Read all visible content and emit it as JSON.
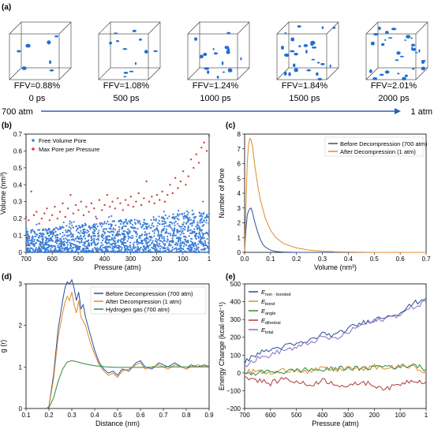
{
  "chart_data": [
    {
      "panel": "(a)",
      "type": "other",
      "snapshots": [
        {
          "ffv": "FFV=0.88%",
          "time": "0 ps",
          "pores": 7
        },
        {
          "ffv": "FFV=1.08%",
          "time": "500 ps",
          "pores": 12
        },
        {
          "ffv": "FFV=1.24%",
          "time": "1000 ps",
          "pores": 16
        },
        {
          "ffv": "FFV=1.84%",
          "time": "1500 ps",
          "pores": 26
        },
        {
          "ffv": "FFV=2.01%",
          "time": "2000 ps",
          "pores": 30
        }
      ],
      "arrow_start": "700 atm",
      "arrow_end": "1 atm",
      "colors": {
        "pore": "#1f6fd6",
        "box": "#333333",
        "arrow": "#2f5fb3"
      }
    },
    {
      "panel": "(b)",
      "type": "scatter",
      "xlabel": "Pressure (atm)",
      "ylabel": "Volume (nm³)",
      "xlim": [
        700,
        1
      ],
      "ylim": [
        0,
        0.7
      ],
      "xticks": [
        "700",
        "600",
        "500",
        "400",
        "300",
        "200",
        "100",
        "1"
      ],
      "yticks": [
        "0",
        "0.1",
        "0.2",
        "0.3",
        "0.4",
        "0.5",
        "0.6",
        "0.7"
      ],
      "legend": "top-left",
      "series": [
        {
          "name": "Free Volume Pore",
          "color": "#3b7dd8",
          "values": "dense band 0–0.15, rising to ~0.3 near 1 atm"
        },
        {
          "name": "Max Pore per Pressure",
          "color": "#d04040",
          "values": [
            [
              700,
              0.21
            ],
            [
              690,
              0.19
            ],
            [
              680,
              0.36
            ],
            [
              670,
              0.22
            ],
            [
              660,
              0.24
            ],
            [
              650,
              0.17
            ],
            [
              640,
              0.2
            ],
            [
              630,
              0.23
            ],
            [
              620,
              0.26
            ],
            [
              610,
              0.19
            ],
            [
              600,
              0.22
            ],
            [
              590,
              0.27
            ],
            [
              580,
              0.2
            ],
            [
              570,
              0.24
            ],
            [
              560,
              0.29
            ],
            [
              550,
              0.21
            ],
            [
              540,
              0.26
            ],
            [
              530,
              0.34
            ],
            [
              520,
              0.23
            ],
            [
              510,
              0.28
            ],
            [
              500,
              0.25
            ],
            [
              490,
              0.3
            ],
            [
              480,
              0.22
            ],
            [
              470,
              0.27
            ],
            [
              460,
              0.24
            ],
            [
              450,
              0.29
            ],
            [
              440,
              0.26
            ],
            [
              430,
              0.2
            ],
            [
              420,
              0.31
            ],
            [
              410,
              0.25
            ],
            [
              400,
              0.28
            ],
            [
              390,
              0.34
            ],
            [
              380,
              0.27
            ],
            [
              370,
              0.3
            ],
            [
              360,
              0.26
            ],
            [
              350,
              0.32
            ],
            [
              340,
              0.29
            ],
            [
              330,
              0.25
            ],
            [
              320,
              0.31
            ],
            [
              310,
              0.28
            ],
            [
              300,
              0.33
            ],
            [
              290,
              0.27
            ],
            [
              280,
              0.3
            ],
            [
              270,
              0.35
            ],
            [
              260,
              0.28
            ],
            [
              250,
              0.32
            ],
            [
              240,
              0.42
            ],
            [
              230,
              0.3
            ],
            [
              220,
              0.33
            ],
            [
              210,
              0.29
            ],
            [
              200,
              0.34
            ],
            [
              190,
              0.31
            ],
            [
              180,
              0.36
            ],
            [
              170,
              0.3
            ],
            [
              160,
              0.34
            ],
            [
              150,
              0.4
            ],
            [
              140,
              0.35
            ],
            [
              130,
              0.44
            ],
            [
              120,
              0.38
            ],
            [
              110,
              0.42
            ],
            [
              100,
              0.48
            ],
            [
              90,
              0.4
            ],
            [
              80,
              0.45
            ],
            [
              70,
              0.55
            ],
            [
              60,
              0.5
            ],
            [
              50,
              0.58
            ],
            [
              40,
              0.53
            ],
            [
              30,
              0.62
            ],
            [
              20,
              0.65
            ],
            [
              10,
              0.6
            ],
            [
              1,
              0.69
            ]
          ]
        }
      ]
    },
    {
      "panel": "(c)",
      "type": "line",
      "xlabel": "Volume (nm³)",
      "ylabel": "Number of Pore",
      "xlim": [
        0,
        0.7
      ],
      "ylim": [
        0,
        8
      ],
      "xticks": [
        "0.0",
        "0.1",
        "0.2",
        "0.3",
        "0.4",
        "0.5",
        "0.6",
        "0.7"
      ],
      "yticks": [
        "0",
        "1",
        "2",
        "3",
        "4",
        "5",
        "6",
        "7",
        "8"
      ],
      "legend": "top-right",
      "series": [
        {
          "name": "Before Decompression (700 atm)",
          "color": "#2b4f9a",
          "x": [
            0.0,
            0.005,
            0.01,
            0.015,
            0.02,
            0.025,
            0.03,
            0.04,
            0.05,
            0.06,
            0.07,
            0.08,
            0.1,
            0.12,
            0.15,
            0.2,
            0.3,
            0.5,
            0.7
          ],
          "y": [
            0.1,
            1.5,
            2.5,
            2.8,
            2.95,
            3.0,
            2.7,
            2.0,
            1.4,
            0.9,
            0.55,
            0.35,
            0.15,
            0.06,
            0.02,
            0.0,
            0.0,
            0.0,
            0.0
          ]
        },
        {
          "name": "After Decompression (1 atm)",
          "color": "#e08a2c",
          "x": [
            0.0,
            0.005,
            0.01,
            0.015,
            0.02,
            0.025,
            0.03,
            0.035,
            0.04,
            0.05,
            0.06,
            0.08,
            0.1,
            0.12,
            0.15,
            0.2,
            0.25,
            0.3,
            0.35,
            0.4,
            0.5,
            0.7
          ],
          "y": [
            0.1,
            3.0,
            6.0,
            7.3,
            7.7,
            7.6,
            7.2,
            6.5,
            5.8,
            4.6,
            3.6,
            2.3,
            1.5,
            1.0,
            0.6,
            0.3,
            0.15,
            0.08,
            0.04,
            0.02,
            0.0,
            0.0
          ]
        }
      ]
    },
    {
      "panel": "(d)",
      "type": "line",
      "xlabel": "Distance (nm)",
      "ylabel": "g (r)",
      "xlim": [
        0.1,
        0.9
      ],
      "ylim": [
        0,
        3
      ],
      "xticks": [
        "0.1",
        "0.2",
        "0.3",
        "0.4",
        "0.5",
        "0.6",
        "0.7",
        "0.8",
        "0.9"
      ],
      "yticks": [
        "0",
        "1",
        "2",
        "3"
      ],
      "legend": "top-right",
      "series": [
        {
          "name": "Before Decompression (700 atm)",
          "color": "#2b4f9a",
          "x": [
            0.19,
            0.2,
            0.22,
            0.24,
            0.26,
            0.27,
            0.28,
            0.29,
            0.3,
            0.31,
            0.32,
            0.33,
            0.34,
            0.35,
            0.36,
            0.38,
            0.4,
            0.42,
            0.44,
            0.46,
            0.48,
            0.5,
            0.52,
            0.55,
            0.58,
            0.6,
            0.62,
            0.65,
            0.68,
            0.7,
            0.72,
            0.75,
            0.78,
            0.8,
            0.82,
            0.85,
            0.88,
            0.9
          ],
          "y": [
            0.0,
            0.05,
            0.8,
            1.9,
            2.6,
            2.9,
            3.05,
            3.0,
            3.1,
            2.9,
            2.6,
            2.8,
            2.4,
            2.5,
            2.2,
            1.8,
            1.4,
            1.1,
            0.95,
            0.85,
            0.9,
            0.8,
            0.95,
            0.9,
            1.1,
            1.15,
            1.0,
            0.95,
            1.1,
            1.05,
            1.0,
            1.1,
            1.0,
            0.95,
            1.05,
            1.0,
            1.05,
            1.0
          ]
        },
        {
          "name": "After Decompression (1 atm)",
          "color": "#e08a2c",
          "x": [
            0.19,
            0.2,
            0.22,
            0.24,
            0.26,
            0.27,
            0.28,
            0.29,
            0.3,
            0.31,
            0.32,
            0.33,
            0.34,
            0.35,
            0.36,
            0.38,
            0.4,
            0.42,
            0.44,
            0.46,
            0.48,
            0.5,
            0.52,
            0.55,
            0.58,
            0.6,
            0.62,
            0.65,
            0.68,
            0.7,
            0.72,
            0.75,
            0.78,
            0.8,
            0.82,
            0.85,
            0.88,
            0.9
          ],
          "y": [
            0.0,
            0.04,
            0.7,
            1.7,
            2.3,
            2.55,
            2.7,
            2.6,
            2.8,
            2.5,
            2.3,
            2.6,
            2.2,
            2.1,
            2.0,
            1.6,
            1.3,
            1.05,
            0.9,
            0.8,
            0.85,
            0.75,
            0.9,
            0.95,
            1.05,
            1.1,
            0.95,
            1.0,
            1.05,
            1.0,
            0.95,
            1.05,
            1.0,
            0.95,
            1.0,
            1.05,
            1.0,
            1.05
          ]
        },
        {
          "name": "Hydrogen gas (700 atm)",
          "color": "#2f8a3e",
          "x": [
            0.19,
            0.2,
            0.22,
            0.24,
            0.26,
            0.28,
            0.3,
            0.32,
            0.34,
            0.36,
            0.4,
            0.45,
            0.5,
            0.6,
            0.7,
            0.8,
            0.9
          ],
          "y": [
            0.0,
            0.02,
            0.25,
            0.65,
            0.95,
            1.12,
            1.15,
            1.13,
            1.1,
            1.07,
            1.03,
            1.0,
            0.99,
            0.99,
            1.0,
            1.0,
            1.0
          ]
        }
      ]
    },
    {
      "panel": "(e)",
      "type": "line",
      "xlabel": "Pressure (atm)",
      "ylabel": "Energy Change (kcal·mol⁻¹)",
      "xlim": [
        700,
        1
      ],
      "ylim": [
        -200,
        500
      ],
      "xticks": [
        "700",
        "600",
        "500",
        "400",
        "300",
        "200",
        "100",
        "1"
      ],
      "yticks": [
        "−200",
        "−100",
        "0",
        "100",
        "200",
        "300",
        "400",
        "500"
      ],
      "legend": "top-left",
      "series": [
        {
          "name": "E",
          "sub": "non - bonded",
          "color": "#2b4f9a",
          "x": [
            700,
            650,
            600,
            550,
            500,
            450,
            400,
            350,
            300,
            250,
            200,
            150,
            100,
            50,
            1
          ],
          "y": [
            60,
            110,
            130,
            150,
            160,
            180,
            220,
            210,
            250,
            280,
            300,
            320,
            340,
            390,
            420
          ]
        },
        {
          "name": "E",
          "sub": "bond",
          "color": "#e08a2c",
          "x": [
            700,
            650,
            600,
            550,
            500,
            450,
            400,
            350,
            300,
            250,
            200,
            150,
            100,
            50,
            1
          ],
          "y": [
            5,
            10,
            -5,
            15,
            20,
            5,
            25,
            15,
            30,
            20,
            35,
            25,
            40,
            30,
            10
          ]
        },
        {
          "name": "E",
          "sub": "angle",
          "color": "#2f8a3e",
          "x": [
            700,
            650,
            600,
            550,
            500,
            450,
            400,
            350,
            300,
            250,
            200,
            150,
            100,
            50,
            1
          ],
          "y": [
            -10,
            0,
            10,
            5,
            15,
            20,
            15,
            25,
            30,
            20,
            35,
            40,
            30,
            50,
            20
          ]
        },
        {
          "name": "E",
          "sub": "dihedral",
          "color": "#b03a3a",
          "x": [
            700,
            650,
            600,
            550,
            500,
            450,
            400,
            350,
            300,
            250,
            200,
            150,
            100,
            50,
            1
          ],
          "y": [
            -20,
            -40,
            -60,
            -30,
            -50,
            -70,
            -40,
            -60,
            -80,
            -50,
            -70,
            -90,
            -60,
            -40,
            -50
          ]
        },
        {
          "name": "E",
          "sub": "total",
          "color": "#8a6cc0",
          "x": [
            700,
            650,
            600,
            550,
            500,
            450,
            400,
            350,
            300,
            250,
            200,
            150,
            100,
            50,
            1
          ],
          "y": [
            40,
            80,
            100,
            130,
            140,
            170,
            200,
            190,
            230,
            270,
            290,
            310,
            330,
            370,
            400
          ]
        }
      ]
    }
  ]
}
